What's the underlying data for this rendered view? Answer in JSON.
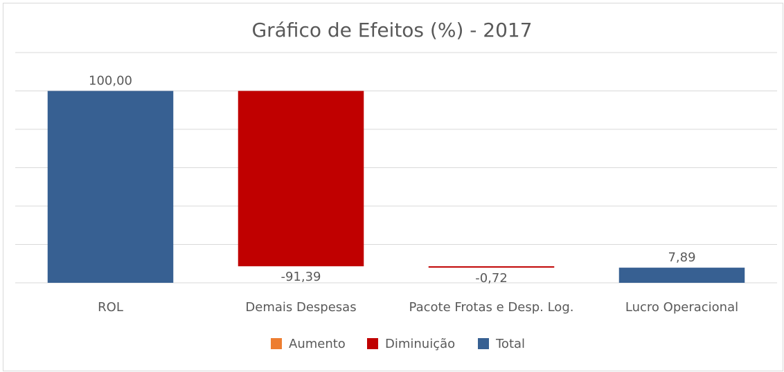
{
  "chart_data": {
    "type": "waterfall",
    "title": "Gráfico de Efeitos (%) - 2017",
    "categories": [
      "ROL",
      "Demais Despesas",
      "Pacote Frotas e Desp. Log.",
      "Lucro Operacional"
    ],
    "series": [
      {
        "name": "Aumento",
        "color": "#ed7d31",
        "values": [
          null,
          null,
          null,
          null
        ]
      },
      {
        "name": "Diminuição",
        "color": "#c00000",
        "values": [
          null,
          -91.39,
          -0.72,
          null
        ],
        "value_labels": [
          null,
          "-91,39",
          "-0,72",
          null
        ]
      },
      {
        "name": "Total",
        "color": "#376092",
        "values": [
          100,
          null,
          null,
          7.89
        ],
        "value_labels": [
          "100,00",
          null,
          null,
          "7,89"
        ]
      }
    ],
    "ylim": [
      0,
      120
    ],
    "yticks": [
      0,
      20,
      40,
      60,
      80,
      100,
      120
    ],
    "grid": true,
    "legend": "bottom"
  }
}
